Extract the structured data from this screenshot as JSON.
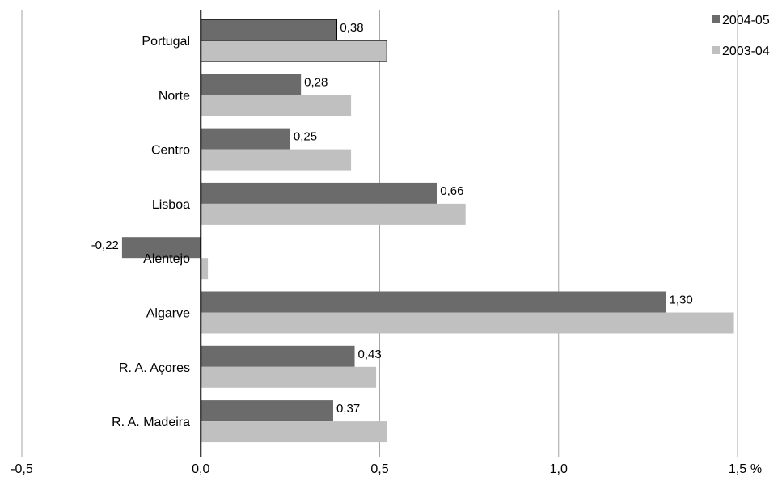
{
  "chart_data": {
    "type": "bar",
    "orientation": "horizontal",
    "categories": [
      "Portugal",
      "Norte",
      "Centro",
      "Lisboa",
      "Alentejo",
      "Algarve",
      "R. A. Açores",
      "R. A. Madeira"
    ],
    "series": [
      {
        "name": "2004-05",
        "values": [
          0.38,
          0.28,
          0.25,
          0.66,
          -0.22,
          1.3,
          0.43,
          0.37
        ],
        "labels": [
          "0,38",
          "0,28",
          "0,25",
          "0,66",
          "-0,22",
          "1,30",
          "0,43",
          "0,37"
        ],
        "color": "#6b6b6b"
      },
      {
        "name": "2003-04",
        "values": [
          0.52,
          0.42,
          0.42,
          0.74,
          0.02,
          1.49,
          0.49,
          0.52
        ],
        "color": "#c0c0c0"
      }
    ],
    "xlim": [
      -0.5,
      1.5
    ],
    "xticks": [
      -0.5,
      0.0,
      0.5,
      1.0,
      1.5
    ],
    "xtick_labels": [
      "-0,5",
      "0,0",
      "0,5",
      "1,0",
      "1,5"
    ],
    "x_unit": "%",
    "grid": "vertical",
    "legend_position": "top-right",
    "highlight_category": "Portugal",
    "axis_color": "#000000",
    "grid_color": "#a6a6a6"
  }
}
